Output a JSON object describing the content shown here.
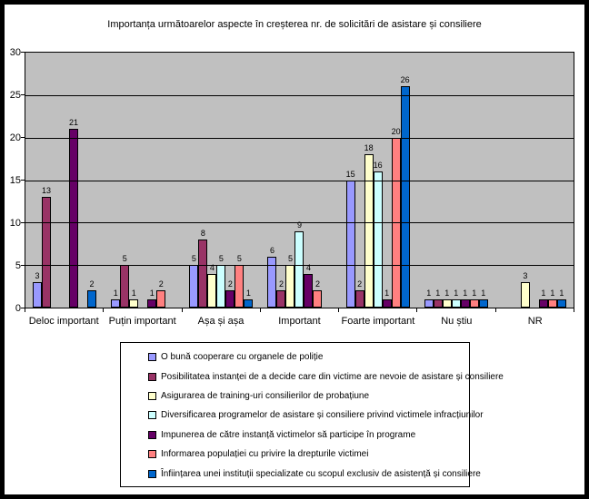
{
  "chart_data": {
    "type": "bar",
    "title": "Importanța următoarelor aspecte în creșterea nr. de solicitări de asistare și consiliere",
    "categories": [
      "Deloc important",
      "Puțin important",
      "Așa și așa",
      "Important",
      "Foarte important",
      "Nu știu",
      "NR"
    ],
    "series": [
      {
        "name": "O bună cooperare cu organele de poliție",
        "color": "#9999ff",
        "values": [
          3,
          1,
          5,
          6,
          15,
          1,
          0
        ]
      },
      {
        "name": "Posibilitatea instanței de a decide care din victime are nevoie de asistare și consiliere",
        "color": "#993366",
        "values": [
          13,
          5,
          8,
          2,
          2,
          1,
          0
        ]
      },
      {
        "name": "Asigurarea de training-uri consilierilor de probațiune",
        "color": "#ffffcc",
        "values": [
          0,
          1,
          4,
          5,
          18,
          1,
          3
        ]
      },
      {
        "name": "Diversificarea programelor de asistare și consiliere privind victimele infracțiunilor",
        "color": "#ccffff",
        "values": [
          0,
          0,
          5,
          9,
          16,
          1,
          0
        ]
      },
      {
        "name": "Impunerea de către instanță victimelor să participe în programe",
        "color": "#660066",
        "values": [
          21,
          1,
          2,
          4,
          1,
          1,
          1
        ]
      },
      {
        "name": "Informarea populației cu privire la drepturile victimei",
        "color": "#ff8080",
        "values": [
          0,
          2,
          5,
          2,
          20,
          1,
          1
        ]
      },
      {
        "name": "Înființarea unei instituții specializate cu scopul exclusiv de asistență și consiliere",
        "color": "#0066cc",
        "values": [
          2,
          0,
          1,
          0,
          26,
          1,
          1
        ]
      }
    ],
    "ylim": [
      0,
      30
    ],
    "yticks": [
      0,
      5,
      10,
      15,
      20,
      25,
      30
    ],
    "grid": true,
    "data_labels": true,
    "legend_position": "bottom",
    "plot_background": "#c0c0c0",
    "page_background": "#ffffff"
  }
}
